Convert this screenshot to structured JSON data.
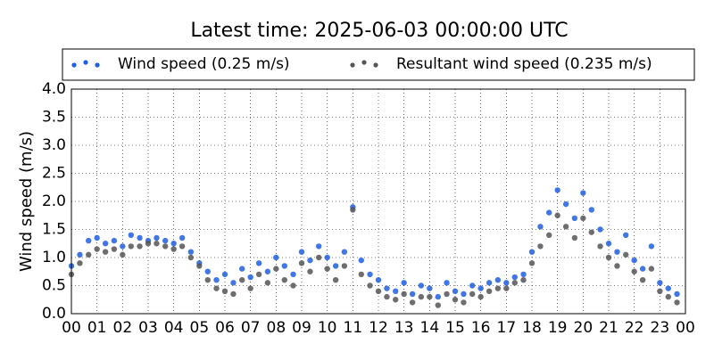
{
  "chart_data": {
    "type": "scatter",
    "title": "Latest time: 2025-06-03 00:00:00 UTC",
    "y_label": "Wind speed (m/s)",
    "x": [
      0.0,
      0.33,
      0.67,
      1.0,
      1.33,
      1.67,
      2.0,
      2.33,
      2.67,
      3.0,
      3.33,
      3.67,
      4.0,
      4.33,
      4.67,
      5.0,
      5.33,
      5.67,
      6.0,
      6.33,
      6.67,
      7.0,
      7.33,
      7.67,
      8.0,
      8.33,
      8.67,
      9.0,
      9.33,
      9.67,
      10.0,
      10.33,
      10.67,
      11.0,
      11.33,
      11.67,
      12.0,
      12.33,
      12.67,
      13.0,
      13.33,
      13.67,
      14.0,
      14.33,
      14.67,
      15.0,
      15.33,
      15.67,
      16.0,
      16.33,
      16.67,
      17.0,
      17.33,
      17.67,
      18.0,
      18.33,
      18.67,
      19.0,
      19.33,
      19.67,
      20.0,
      20.33,
      20.67,
      21.0,
      21.33,
      21.67,
      22.0,
      22.33,
      22.67,
      23.0,
      23.33,
      23.67
    ],
    "series": [
      {
        "name": "Wind speed (0.25 m/s)",
        "color": "#1f5fe0",
        "values": [
          0.85,
          1.05,
          1.3,
          1.35,
          1.25,
          1.3,
          1.2,
          1.4,
          1.35,
          1.3,
          1.35,
          1.3,
          1.25,
          1.35,
          1.1,
          0.9,
          0.75,
          0.6,
          0.7,
          0.55,
          0.8,
          0.65,
          0.9,
          0.75,
          1.0,
          0.85,
          0.7,
          1.1,
          0.95,
          1.2,
          1.0,
          0.85,
          1.1,
          1.9,
          0.95,
          0.7,
          0.6,
          0.45,
          0.4,
          0.55,
          0.35,
          0.5,
          0.45,
          0.3,
          0.55,
          0.4,
          0.35,
          0.5,
          0.45,
          0.55,
          0.6,
          0.55,
          0.65,
          0.7,
          1.1,
          1.55,
          1.8,
          2.2,
          1.95,
          1.7,
          2.15,
          1.85,
          1.5,
          1.25,
          1.1,
          1.4,
          0.95,
          0.8,
          1.2,
          0.55,
          0.45,
          0.35
        ]
      },
      {
        "name": "Resultant wind speed (0.235 m/s)",
        "color": "#555555",
        "values": [
          0.7,
          0.9,
          1.05,
          1.15,
          1.1,
          1.15,
          1.05,
          1.2,
          1.2,
          1.25,
          1.25,
          1.2,
          1.15,
          1.2,
          1.0,
          0.85,
          0.6,
          0.45,
          0.4,
          0.35,
          0.6,
          0.45,
          0.7,
          0.55,
          0.8,
          0.6,
          0.5,
          0.9,
          0.75,
          1.0,
          0.8,
          0.6,
          0.85,
          1.85,
          0.7,
          0.5,
          0.4,
          0.3,
          0.25,
          0.35,
          0.2,
          0.3,
          0.3,
          0.15,
          0.35,
          0.25,
          0.2,
          0.35,
          0.3,
          0.4,
          0.45,
          0.45,
          0.55,
          0.6,
          0.9,
          1.2,
          1.4,
          1.75,
          1.55,
          1.35,
          1.7,
          1.45,
          1.2,
          1.0,
          0.85,
          1.05,
          0.75,
          0.6,
          0.8,
          0.4,
          0.3,
          0.2
        ]
      }
    ],
    "xlim": [
      0,
      24
    ],
    "xticks": [
      {
        "value": 0,
        "label": "00"
      },
      {
        "value": 1,
        "label": "01"
      },
      {
        "value": 2,
        "label": "02"
      },
      {
        "value": 3,
        "label": "03"
      },
      {
        "value": 4,
        "label": "04"
      },
      {
        "value": 5,
        "label": "05"
      },
      {
        "value": 6,
        "label": "06"
      },
      {
        "value": 7,
        "label": "07"
      },
      {
        "value": 8,
        "label": "08"
      },
      {
        "value": 9,
        "label": "09"
      },
      {
        "value": 10,
        "label": "10"
      },
      {
        "value": 11,
        "label": "11"
      },
      {
        "value": 12,
        "label": "12"
      },
      {
        "value": 13,
        "label": "13"
      },
      {
        "value": 14,
        "label": "14"
      },
      {
        "value": 15,
        "label": "15"
      },
      {
        "value": 16,
        "label": "16"
      },
      {
        "value": 17,
        "label": "17"
      },
      {
        "value": 18,
        "label": "18"
      },
      {
        "value": 19,
        "label": "19"
      },
      {
        "value": 20,
        "label": "20"
      },
      {
        "value": 21,
        "label": "21"
      },
      {
        "value": 22,
        "label": "22"
      },
      {
        "value": 23,
        "label": "23"
      },
      {
        "value": 24,
        "label": "00"
      }
    ],
    "ylim": [
      0,
      4
    ],
    "yticks": [
      {
        "value": 0,
        "label": "0.0"
      },
      {
        "value": 0.5,
        "label": "0.5"
      },
      {
        "value": 1,
        "label": "1.0"
      },
      {
        "value": 1.5,
        "label": "1.5"
      },
      {
        "value": 2,
        "label": "2.0"
      },
      {
        "value": 2.5,
        "label": "2.5"
      },
      {
        "value": 3,
        "label": "3.0"
      },
      {
        "value": 3.5,
        "label": "3.5"
      },
      {
        "value": 4,
        "label": "4.0"
      }
    ],
    "grid": true,
    "legend": "top"
  }
}
